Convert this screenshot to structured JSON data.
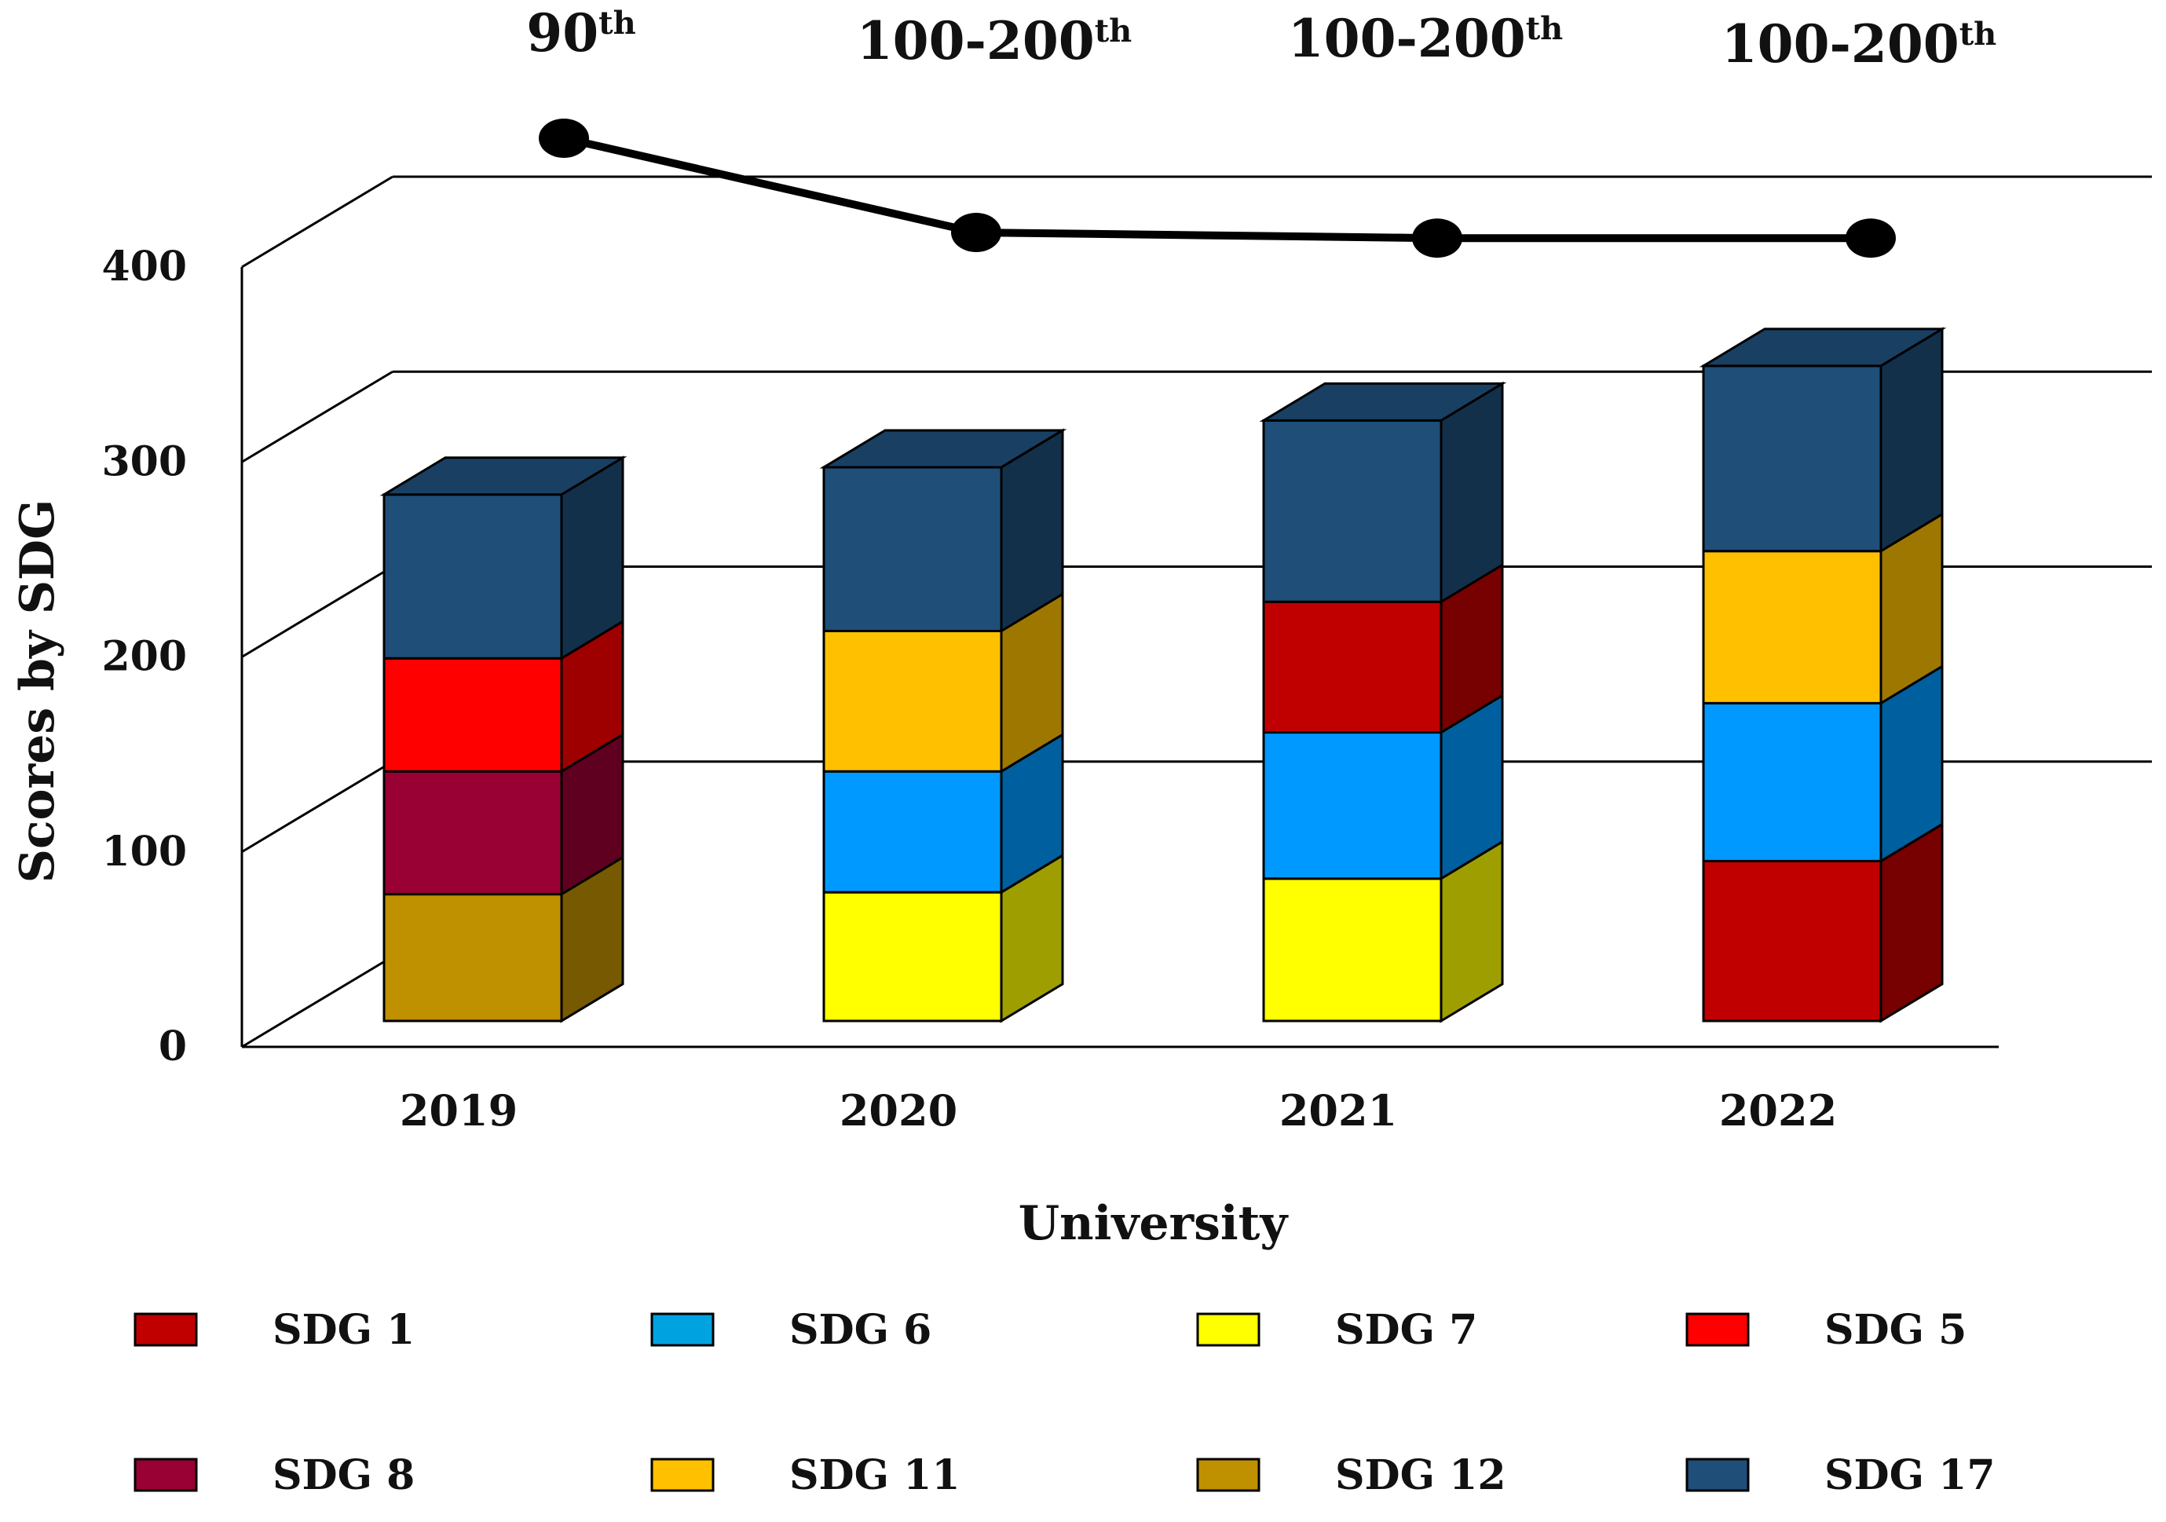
{
  "chart_data": {
    "type": "bar",
    "subtype": "stacked-3d-with-line",
    "xlabel": "University",
    "ylabel": "Scores by SDG",
    "ylim": [
      0,
      400
    ],
    "yticks": [
      "0",
      "100",
      "200",
      "300",
      "400"
    ],
    "categories": [
      "2019",
      "2020",
      "2021",
      "2022"
    ],
    "stacks": [
      {
        "category": "2019",
        "segments": [
          {
            "sdg": "SDG 12",
            "value": 65
          },
          {
            "sdg": "SDG 8",
            "value": 63
          },
          {
            "sdg": "SDG 5",
            "value": 58
          },
          {
            "sdg": "SDG 17",
            "value": 84
          }
        ]
      },
      {
        "category": "2020",
        "segments": [
          {
            "sdg": "SDG 7",
            "value": 66
          },
          {
            "sdg": "SDG 6",
            "value": 62
          },
          {
            "sdg": "SDG 11",
            "value": 72
          },
          {
            "sdg": "SDG 17",
            "value": 84
          }
        ]
      },
      {
        "category": "2021",
        "segments": [
          {
            "sdg": "SDG 7",
            "value": 73
          },
          {
            "sdg": "SDG 6",
            "value": 75
          },
          {
            "sdg": "SDG 1",
            "value": 67
          },
          {
            "sdg": "SDG 17",
            "value": 93
          }
        ]
      },
      {
        "category": "2022",
        "segments": [
          {
            "sdg": "SDG 1",
            "value": 82
          },
          {
            "sdg": "SDG 6",
            "value": 81
          },
          {
            "sdg": "SDG 11",
            "value": 78
          },
          {
            "sdg": "SDG 17",
            "value": 95
          }
        ]
      }
    ],
    "ranking_line": {
      "labels": [
        {
          "main": "90",
          "sup": "th"
        },
        {
          "main": "100-200",
          "sup": "th"
        },
        {
          "main": "100-200",
          "sup": "th"
        },
        {
          "main": "100-200",
          "sup": "th"
        }
      ],
      "relative_height": [
        1.0,
        0.0,
        -0.06,
        -0.06
      ]
    },
    "legend": [
      {
        "label": "SDG 1",
        "color": "#C00000"
      },
      {
        "label": "SDG 6",
        "color": "#00A3E0"
      },
      {
        "label": "SDG 7",
        "color": "#FFFF00"
      },
      {
        "label": "SDG 5",
        "color": "#FF0000"
      },
      {
        "label": "SDG 8",
        "color": "#990033"
      },
      {
        "label": "SDG 11",
        "color": "#FFC000"
      },
      {
        "label": "SDG 12",
        "color": "#BF9000"
      },
      {
        "label": "SDG 17",
        "color": "#1F4E79"
      }
    ],
    "segment_colors": {
      "SDG 1": "#C00000",
      "SDG 6": "#0099FF",
      "SDG 7": "#FFFF00",
      "SDG 5": "#FF0000",
      "SDG 8": "#990033",
      "SDG 11": "#FFC000",
      "SDG 12": "#BF9000",
      "SDG 17": "#1F4E79"
    }
  }
}
